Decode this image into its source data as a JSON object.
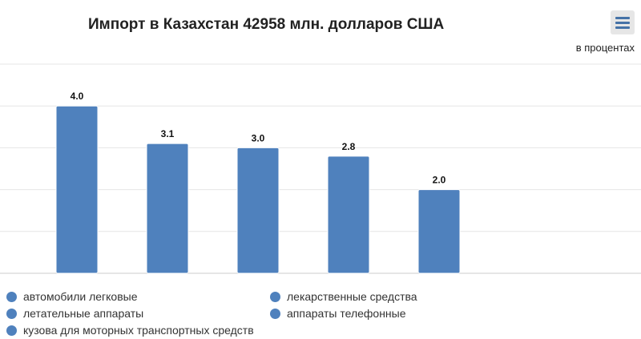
{
  "chart_data": {
    "type": "bar",
    "title": "Импорт в Казахстан 42958 млн. долларов США",
    "unit_label": "в процентах",
    "categories": [
      "автомобили легковые",
      "летательные аппараты",
      "кузова для моторных транспортных средств",
      "лекарственные средства",
      "аппараты телефонные"
    ],
    "values": [
      4.0,
      3.1,
      3.0,
      2.8,
      2.0
    ],
    "data_labels": [
      "4.0",
      "3.1",
      "3.0",
      "2.8",
      "2.0"
    ],
    "ylim": [
      0,
      5
    ],
    "grid": true,
    "legend_position": "bottom",
    "bar_color": "#4f81bd"
  },
  "menu": {
    "icon": "hamburger-menu-icon"
  }
}
